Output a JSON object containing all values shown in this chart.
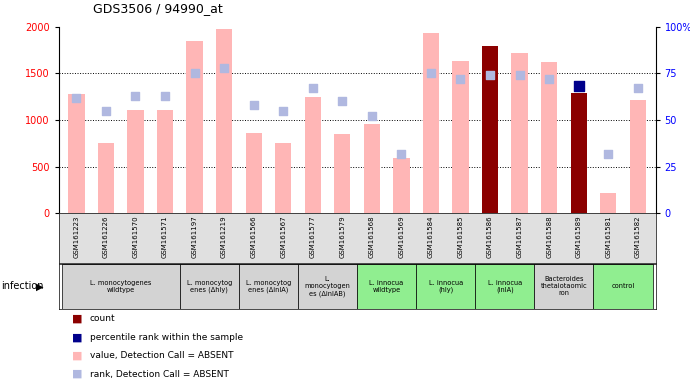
{
  "title": "GDS3506 / 94990_at",
  "samples": [
    "GSM161223",
    "GSM161226",
    "GSM161570",
    "GSM161571",
    "GSM161197",
    "GSM161219",
    "GSM161566",
    "GSM161567",
    "GSM161577",
    "GSM161579",
    "GSM161568",
    "GSM161569",
    "GSM161584",
    "GSM161585",
    "GSM161586",
    "GSM161587",
    "GSM161588",
    "GSM161589",
    "GSM161581",
    "GSM161582"
  ],
  "values": [
    1280,
    750,
    1110,
    1110,
    1850,
    1980,
    860,
    750,
    1250,
    850,
    960,
    590,
    1930,
    1630,
    1790,
    1720,
    1620,
    1290,
    220,
    1210
  ],
  "ranks": [
    62,
    55,
    63,
    63,
    75,
    78,
    58,
    55,
    67,
    60,
    52,
    32,
    75,
    72,
    74,
    74,
    72,
    68,
    32,
    67
  ],
  "is_count": [
    false,
    false,
    false,
    false,
    false,
    false,
    false,
    false,
    false,
    false,
    false,
    false,
    false,
    false,
    true,
    false,
    false,
    true,
    false,
    false
  ],
  "is_rank_count": [
    false,
    false,
    false,
    false,
    false,
    false,
    false,
    false,
    false,
    false,
    false,
    false,
    false,
    false,
    false,
    false,
    false,
    true,
    false,
    false
  ],
  "groups": [
    {
      "label": "L. monocytogenes\nwildtype",
      "start": 0,
      "end": 4,
      "color": "#d3d3d3"
    },
    {
      "label": "L. monocytog\nenes (Δhly)",
      "start": 4,
      "end": 6,
      "color": "#d3d3d3"
    },
    {
      "label": "L. monocytog\nenes (ΔinlA)",
      "start": 6,
      "end": 8,
      "color": "#d3d3d3"
    },
    {
      "label": "L.\nmonocytogen\nes (ΔinlAB)",
      "start": 8,
      "end": 10,
      "color": "#d3d3d3"
    },
    {
      "label": "L. innocua\nwildtype",
      "start": 10,
      "end": 12,
      "color": "#90ee90"
    },
    {
      "label": "L. innocua\n(hly)",
      "start": 12,
      "end": 14,
      "color": "#90ee90"
    },
    {
      "label": "L. innocua\n(inlA)",
      "start": 14,
      "end": 16,
      "color": "#90ee90"
    },
    {
      "label": "Bacteroides\nthetaiotaomic\nron",
      "start": 16,
      "end": 18,
      "color": "#d3d3d3"
    },
    {
      "label": "control",
      "start": 18,
      "end": 20,
      "color": "#90ee90"
    }
  ],
  "ylim_left": [
    0,
    2000
  ],
  "ylim_right": [
    0,
    100
  ],
  "yticks_left": [
    0,
    500,
    1000,
    1500,
    2000
  ],
  "yticks_right": [
    0,
    25,
    50,
    75,
    100
  ],
  "ytick_labels_right": [
    "0",
    "25",
    "50",
    "75",
    "100%"
  ],
  "bar_color_absent": "#ffb6b6",
  "bar_color_count": "#8b0000",
  "rank_dot_color_absent": "#b0b8e0",
  "rank_dot_color_count": "#00008b",
  "infection_label": "infection",
  "legend_items": [
    {
      "color": "#8b0000",
      "label": "count"
    },
    {
      "color": "#00008b",
      "label": "percentile rank within the sample"
    },
    {
      "color": "#ffb6b6",
      "label": "value, Detection Call = ABSENT"
    },
    {
      "color": "#b0b8e0",
      "label": "rank, Detection Call = ABSENT"
    }
  ]
}
